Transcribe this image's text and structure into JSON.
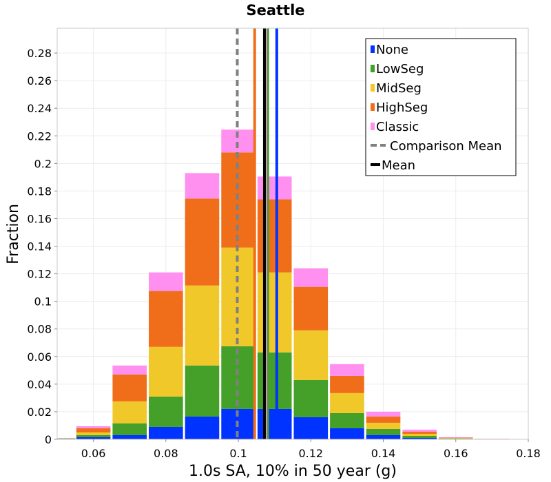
{
  "chart_data": {
    "type": "bar",
    "stacked": true,
    "title": "Seattle",
    "xlabel": "1.0s SA, 10% in 50 year (g)",
    "ylabel": "Fraction",
    "xlim": [
      0.05,
      0.18
    ],
    "ylim": [
      0,
      0.298
    ],
    "xticks": [
      0.06,
      0.08,
      0.1,
      0.12,
      0.14,
      0.16,
      0.18
    ],
    "xtick_labels": [
      "0.06",
      "0.08",
      "0.1",
      "0.12",
      "0.14",
      "0.16",
      "0.18"
    ],
    "yticks": [
      0,
      0.02,
      0.04,
      0.06,
      0.08,
      0.1,
      0.12,
      0.14,
      0.16,
      0.18,
      0.2,
      0.22,
      0.24,
      0.26,
      0.28
    ],
    "ytick_labels": [
      "0",
      "0.02",
      "0.04",
      "0.06",
      "0.08",
      "0.1",
      "0.12",
      "0.14",
      "0.16",
      "0.18",
      "0.2",
      "0.22",
      "0.24",
      "0.26",
      "0.28"
    ],
    "grid": true,
    "legend_position": "top-right",
    "bin_width": 0.01,
    "bin_centers": [
      0.06,
      0.07,
      0.08,
      0.09,
      0.1,
      0.11,
      0.12,
      0.13,
      0.14,
      0.15,
      0.16,
      0.17
    ],
    "series": [
      {
        "name": "None",
        "color": "#0033ff",
        "values": [
          0.0015,
          0.003,
          0.009,
          0.0165,
          0.022,
          0.022,
          0.016,
          0.008,
          0.003,
          0.001,
          0.0003,
          0.0001
        ]
      },
      {
        "name": "LowSeg",
        "color": "#44a028",
        "values": [
          0.0015,
          0.0085,
          0.022,
          0.037,
          0.0455,
          0.041,
          0.027,
          0.011,
          0.0045,
          0.0015,
          0.0003,
          0.0001
        ]
      },
      {
        "name": "MidSeg",
        "color": "#f0c82a",
        "values": [
          0.002,
          0.016,
          0.036,
          0.058,
          0.0715,
          0.058,
          0.036,
          0.0145,
          0.0045,
          0.0015,
          0.0003,
          0.0001
        ]
      },
      {
        "name": "HighSeg",
        "color": "#f06e1a",
        "values": [
          0.003,
          0.0195,
          0.0405,
          0.063,
          0.069,
          0.053,
          0.0315,
          0.0125,
          0.0045,
          0.0015,
          0.0003,
          0.0001
        ]
      },
      {
        "name": "Classic",
        "color": "#ff90f0",
        "values": [
          0.0015,
          0.0065,
          0.0135,
          0.0185,
          0.0165,
          0.0165,
          0.0135,
          0.0085,
          0.0035,
          0.0015,
          0.0003,
          0.0001
        ]
      }
    ],
    "mean_lines": [
      {
        "name": "None",
        "x": 0.1106,
        "color": "#0033ff",
        "width": 4,
        "dashed": false,
        "in_legend": false
      },
      {
        "name": "LowSeg",
        "x": 0.1081,
        "color": "#44a028",
        "width": 4,
        "dashed": false,
        "in_legend": false
      },
      {
        "name": "MidSeg",
        "x": 0.1072,
        "color": "#f0c82a",
        "width": 4,
        "dashed": false,
        "in_legend": false
      },
      {
        "name": "HighSeg",
        "x": 0.1045,
        "color": "#f06e1a",
        "width": 4,
        "dashed": false,
        "in_legend": false
      },
      {
        "name": "Classic",
        "x": 0.1075,
        "color": "#ff90f0",
        "width": 4,
        "dashed": false,
        "in_legend": false
      },
      {
        "name": "Comparison Mean",
        "x": 0.0997,
        "color": "#808080",
        "width": 4,
        "dashed": true,
        "in_legend": true
      },
      {
        "name": "Mean",
        "x": 0.1072,
        "color": "#000000",
        "width": 4,
        "dashed": false,
        "in_legend": true
      }
    ],
    "legend": [
      "None",
      "LowSeg",
      "MidSeg",
      "HighSeg",
      "Classic",
      "Comparison Mean",
      "Mean"
    ]
  }
}
